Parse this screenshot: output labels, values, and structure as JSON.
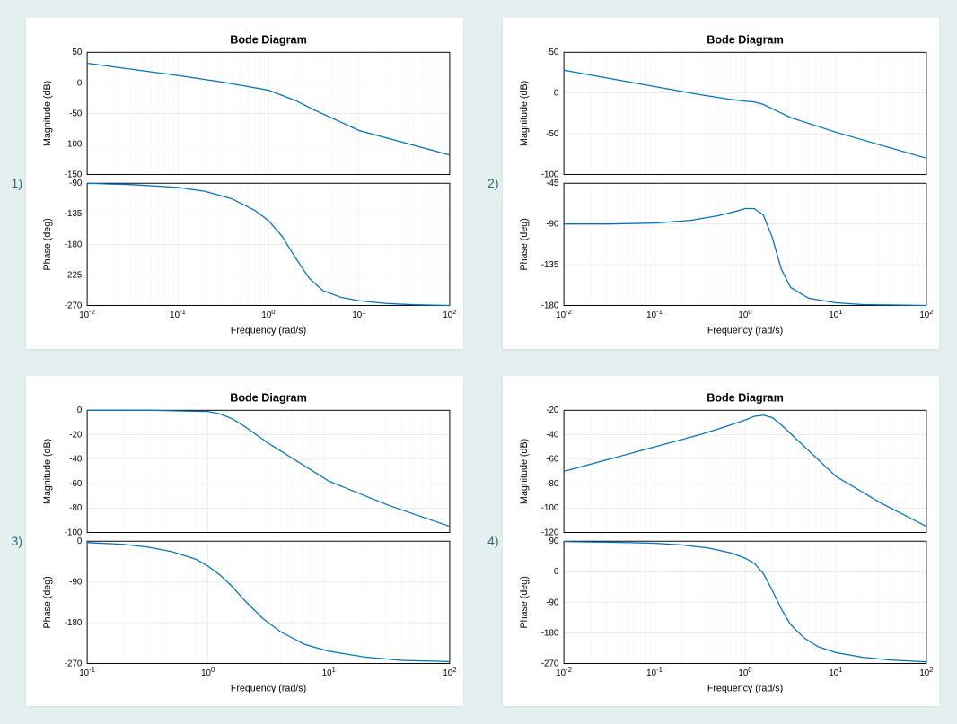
{
  "background_color": "#e4f0f0",
  "panel_background": "#ffffff",
  "line_color": "#0072bd",
  "grid_color": "#d9d9d9",
  "minor_grid_color": "#eeeeee",
  "title_text": "Bode Diagram",
  "title_fontsize": 13,
  "title_fontweight": "bold",
  "xlabel": "Frequency  (rad/s)",
  "ylabel_mag": "Magnitude (dB)",
  "ylabel_phase": "Phase (deg)",
  "label_fontsize": 11,
  "tick_fontsize": 10,
  "log_minor_ticks": [
    2,
    3,
    4,
    5,
    6,
    7,
    8,
    9
  ],
  "plots": [
    {
      "id": "1",
      "x_exp_min": -2,
      "x_exp_max": 2,
      "mag": {
        "ymin": -150,
        "ymax": 50,
        "ystep": 50,
        "points": [
          [
            -2,
            32
          ],
          [
            -1.5,
            22
          ],
          [
            -1,
            12
          ],
          [
            -0.5,
            1
          ],
          [
            0,
            -12
          ],
          [
            0.3,
            -29
          ],
          [
            0.5,
            -44
          ],
          [
            1,
            -78
          ],
          [
            1.5,
            -98
          ],
          [
            2,
            -118
          ]
        ]
      },
      "phase": {
        "ymin": -270,
        "ymax": -90,
        "ystep": 45,
        "points": [
          [
            -2,
            -90
          ],
          [
            -1.5,
            -92
          ],
          [
            -1,
            -96
          ],
          [
            -0.7,
            -102
          ],
          [
            -0.4,
            -113
          ],
          [
            -0.15,
            -130
          ],
          [
            0,
            -145
          ],
          [
            0.15,
            -168
          ],
          [
            0.3,
            -200
          ],
          [
            0.45,
            -230
          ],
          [
            0.6,
            -248
          ],
          [
            0.8,
            -258
          ],
          [
            1,
            -263
          ],
          [
            1.3,
            -267
          ],
          [
            1.6,
            -269
          ],
          [
            2,
            -270
          ]
        ]
      }
    },
    {
      "id": "2",
      "x_exp_min": -2,
      "x_exp_max": 2,
      "mag": {
        "ymin": -100,
        "ymax": 50,
        "ystep": 50,
        "points": [
          [
            -2,
            28
          ],
          [
            -1.5,
            18
          ],
          [
            -1,
            8
          ],
          [
            -0.5,
            -2
          ],
          [
            -0.15,
            -8
          ],
          [
            0,
            -10
          ],
          [
            0.1,
            -11
          ],
          [
            0.2,
            -14
          ],
          [
            0.5,
            -30
          ],
          [
            1,
            -48
          ],
          [
            1.5,
            -64
          ],
          [
            2,
            -80
          ]
        ]
      },
      "phase": {
        "ymin": -180,
        "ymax": -45,
        "ystep": 45,
        "points": [
          [
            -2,
            -90
          ],
          [
            -1.5,
            -90
          ],
          [
            -1,
            -89
          ],
          [
            -0.6,
            -86
          ],
          [
            -0.3,
            -81
          ],
          [
            -0.1,
            -76
          ],
          [
            0,
            -73
          ],
          [
            0.1,
            -73
          ],
          [
            0.2,
            -80
          ],
          [
            0.3,
            -105
          ],
          [
            0.4,
            -140
          ],
          [
            0.5,
            -160
          ],
          [
            0.7,
            -172
          ],
          [
            1,
            -177
          ],
          [
            1.3,
            -179
          ],
          [
            2,
            -180
          ]
        ]
      }
    },
    {
      "id": "3",
      "x_exp_min": -1,
      "x_exp_max": 2,
      "mag": {
        "ymin": -100,
        "ymax": 0,
        "ystep": 20,
        "points": [
          [
            -1,
            0
          ],
          [
            -0.5,
            0
          ],
          [
            0,
            -1
          ],
          [
            0.1,
            -3
          ],
          [
            0.2,
            -7
          ],
          [
            0.3,
            -13
          ],
          [
            0.5,
            -27
          ],
          [
            1,
            -58
          ],
          [
            1.5,
            -78
          ],
          [
            2,
            -95
          ]
        ]
      },
      "phase": {
        "ymin": -270,
        "ymax": 0,
        "ystep": 90,
        "points": [
          [
            -1,
            -3
          ],
          [
            -0.7,
            -7
          ],
          [
            -0.5,
            -13
          ],
          [
            -0.3,
            -23
          ],
          [
            -0.1,
            -40
          ],
          [
            0,
            -55
          ],
          [
            0.1,
            -75
          ],
          [
            0.2,
            -100
          ],
          [
            0.3,
            -130
          ],
          [
            0.45,
            -170
          ],
          [
            0.6,
            -200
          ],
          [
            0.8,
            -228
          ],
          [
            1,
            -243
          ],
          [
            1.3,
            -256
          ],
          [
            1.6,
            -263
          ],
          [
            2,
            -266
          ]
        ]
      }
    },
    {
      "id": "4",
      "x_exp_min": -2,
      "x_exp_max": 2,
      "mag": {
        "ymin": -120,
        "ymax": -20,
        "ystep": 20,
        "points": [
          [
            -2,
            -70
          ],
          [
            -1.5,
            -60
          ],
          [
            -1,
            -50
          ],
          [
            -0.5,
            -40
          ],
          [
            -0.2,
            -33
          ],
          [
            0,
            -28
          ],
          [
            0.1,
            -25
          ],
          [
            0.2,
            -24
          ],
          [
            0.3,
            -26
          ],
          [
            0.4,
            -32
          ],
          [
            0.6,
            -46
          ],
          [
            1,
            -74
          ],
          [
            1.5,
            -96
          ],
          [
            2,
            -115
          ]
        ]
      },
      "phase": {
        "ymin": -270,
        "ymax": 90,
        "ystep": 90,
        "points": [
          [
            -2,
            89
          ],
          [
            -1.5,
            87
          ],
          [
            -1,
            84
          ],
          [
            -0.7,
            79
          ],
          [
            -0.4,
            70
          ],
          [
            -0.15,
            55
          ],
          [
            0,
            40
          ],
          [
            0.1,
            25
          ],
          [
            0.2,
            -5
          ],
          [
            0.3,
            -55
          ],
          [
            0.4,
            -110
          ],
          [
            0.5,
            -155
          ],
          [
            0.65,
            -195
          ],
          [
            0.8,
            -220
          ],
          [
            1,
            -238
          ],
          [
            1.3,
            -252
          ],
          [
            1.6,
            -260
          ],
          [
            2,
            -265
          ]
        ]
      }
    }
  ]
}
